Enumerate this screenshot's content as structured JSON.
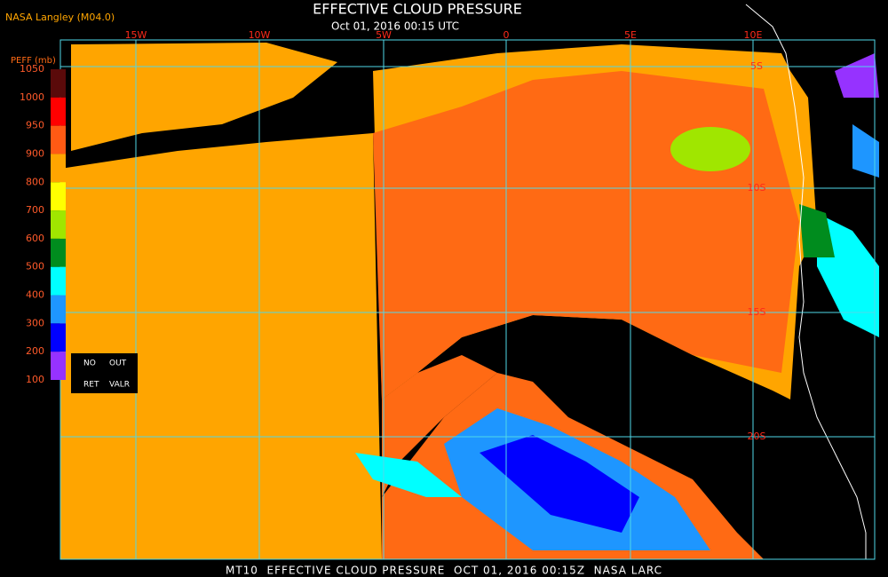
{
  "header": {
    "source": "NASA Langley (M04.0)",
    "title": "EFFECTIVE CLOUD PRESSURE",
    "subtitle": "Oct 01, 2016 00:15 UTC"
  },
  "legend": {
    "title": "PEFF (mb)",
    "ticks": [
      1050,
      1000,
      950,
      900,
      800,
      700,
      600,
      500,
      400,
      300,
      200,
      100
    ],
    "colors": [
      "#5a0a0a",
      "#ff0000",
      "#ff5a14",
      "#ffa500",
      "#ffff00",
      "#a0e600",
      "#008c1e",
      "#00ffff",
      "#1e96ff",
      "#0000ff",
      "#9632ff"
    ],
    "no_data": [
      "NO",
      "RET"
    ],
    "out_of_range": [
      "OUT",
      "VALR"
    ]
  },
  "grid": {
    "longitudes": [
      "15W",
      "10W",
      "5W",
      "0",
      "5E",
      "10E"
    ],
    "latitudes": [
      "5S",
      "10S",
      "15S",
      "20S"
    ],
    "color": "#4fd8e8"
  },
  "footer": "MT10  EFFECTIVE CLOUD PRESSURE  OCT 01, 2016 00:15Z  NASA LARC"
}
